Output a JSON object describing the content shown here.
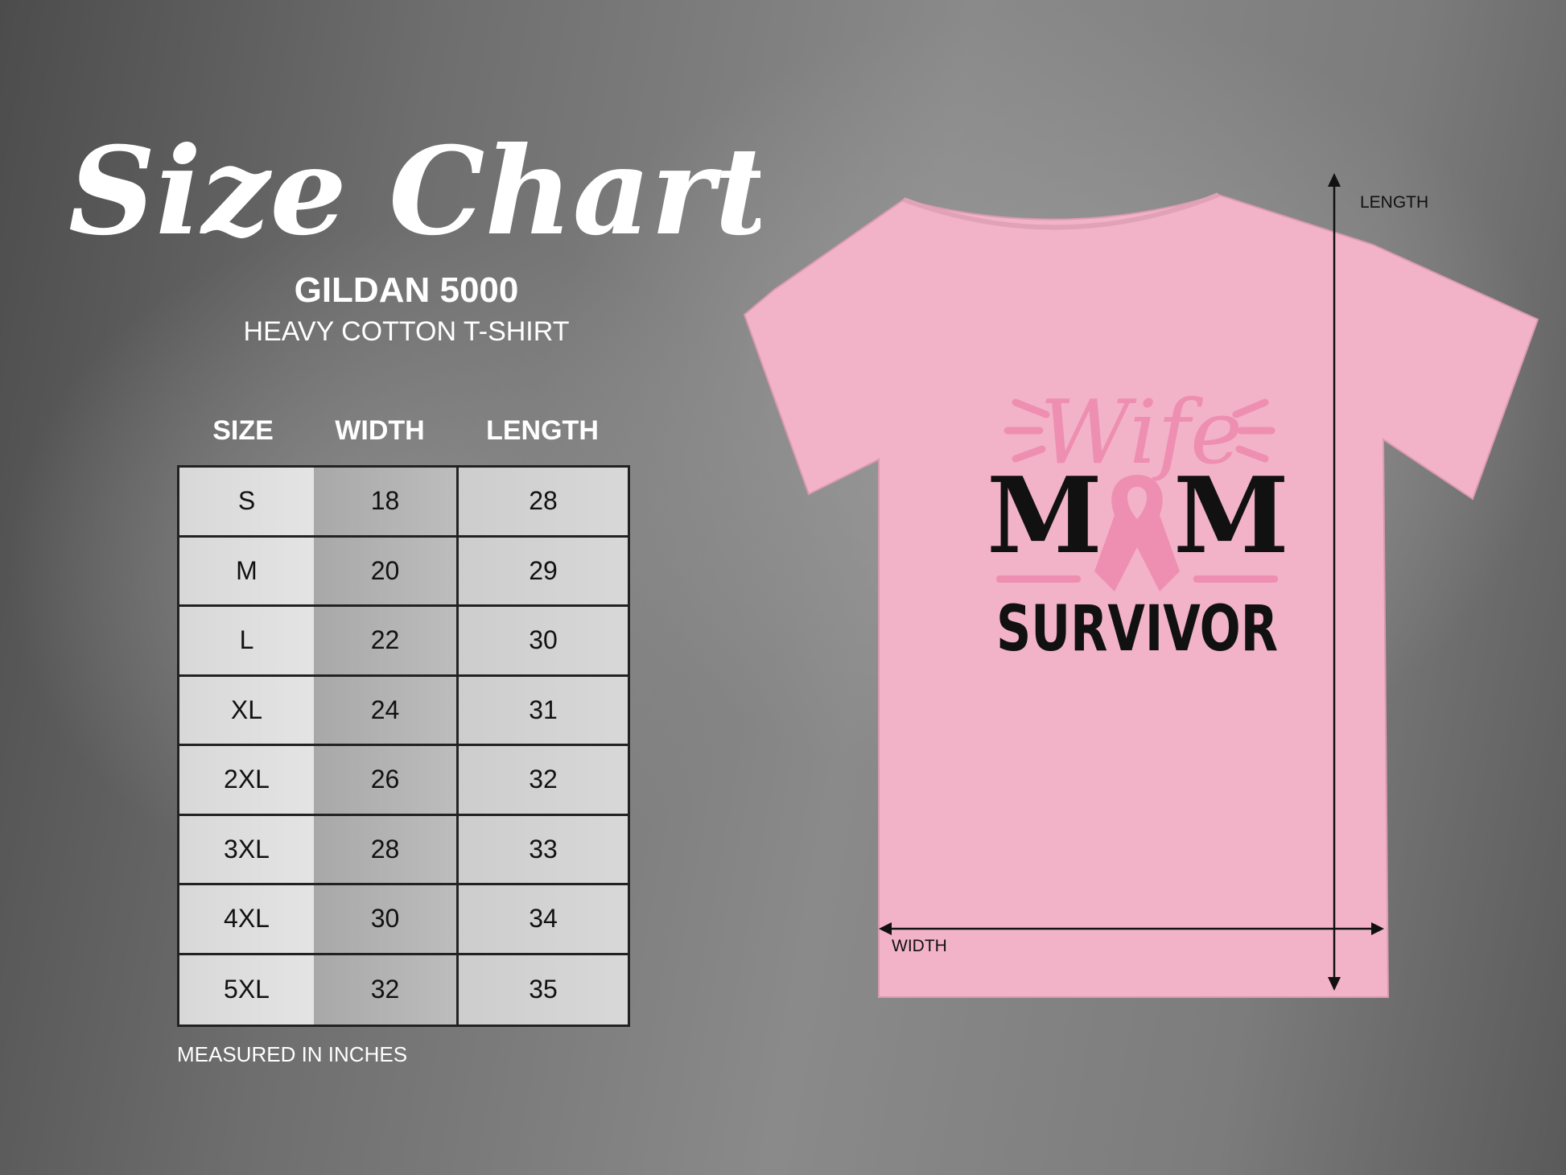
{
  "title": "Size Chart",
  "product": {
    "brand": "GILDAN 5000",
    "name": "HEAVY COTTON T-SHIRT"
  },
  "table": {
    "headers": [
      "SIZE",
      "WIDTH",
      "LENGTH"
    ],
    "rows": [
      [
        "S",
        "18",
        "28"
      ],
      [
        "M",
        "20",
        "29"
      ],
      [
        "L",
        "22",
        "30"
      ],
      [
        "XL",
        "24",
        "31"
      ],
      [
        "2XL",
        "26",
        "32"
      ],
      [
        "3XL",
        "28",
        "33"
      ],
      [
        "4XL",
        "30",
        "34"
      ],
      [
        "5XL",
        "32",
        "35"
      ]
    ]
  },
  "note": "MEASURED IN INCHES",
  "shirt": {
    "color": "#f2b3c8",
    "design": {
      "line1": "Wife",
      "line2": "M",
      "line3": "M",
      "line4": "SURVIVOR",
      "ink": "#111111",
      "accent": "#ee8fb1"
    },
    "length_label": "LENGTH",
    "width_label": "WIDTH"
  }
}
